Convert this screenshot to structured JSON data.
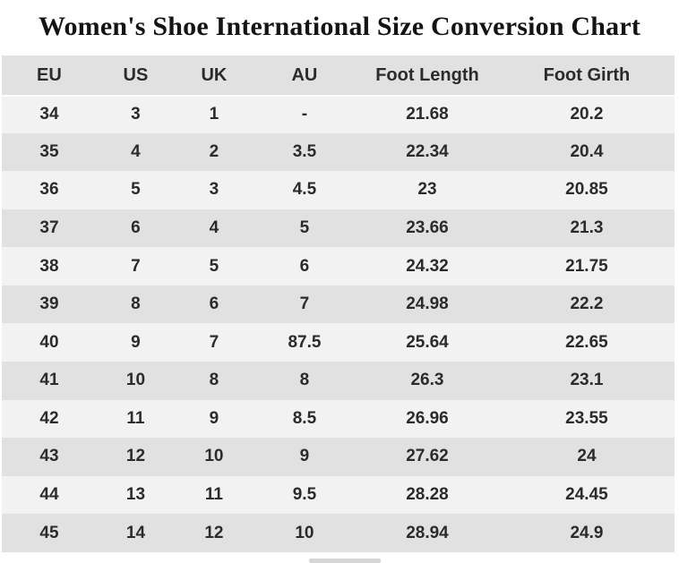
{
  "chart_data": {
    "type": "table",
    "title": "Women's Shoe International Size Conversion Chart",
    "columns": [
      "EU",
      "US",
      "UK",
      "AU",
      "Foot Length",
      "Foot Girth"
    ],
    "rows": [
      [
        "34",
        "3",
        "1",
        "-",
        "21.68",
        "20.2"
      ],
      [
        "35",
        "4",
        "2",
        "3.5",
        "22.34",
        "20.4"
      ],
      [
        "36",
        "5",
        "3",
        "4.5",
        "23",
        "20.85"
      ],
      [
        "37",
        "6",
        "4",
        "5",
        "23.66",
        "21.3"
      ],
      [
        "38",
        "7",
        "5",
        "6",
        "24.32",
        "21.75"
      ],
      [
        "39",
        "8",
        "6",
        "7",
        "24.98",
        "22.2"
      ],
      [
        "40",
        "9",
        "7",
        "87.5",
        "25.64",
        "22.65"
      ],
      [
        "41",
        "10",
        "8",
        "8",
        "26.3",
        "23.1"
      ],
      [
        "42",
        "11",
        "9",
        "8.5",
        "26.96",
        "23.55"
      ],
      [
        "43",
        "12",
        "10",
        "9",
        "27.62",
        "24"
      ],
      [
        "44",
        "13",
        "11",
        "9.5",
        "28.28",
        "24.45"
      ],
      [
        "45",
        "14",
        "12",
        "10",
        "28.94",
        "24.9"
      ]
    ],
    "layout": {
      "striped_rows": true,
      "first_data_row_shade": "light",
      "alternate_row_shade": "dark"
    }
  },
  "colors": {
    "page_background": "#ffffff",
    "row_light": "#f2f2f2",
    "row_dark": "#e1e1e1",
    "header_bg": "#e1e1e1",
    "cell_text": "#2b2b2b",
    "title_text": "#141414",
    "bottom_mark": "#d6d6d6"
  }
}
